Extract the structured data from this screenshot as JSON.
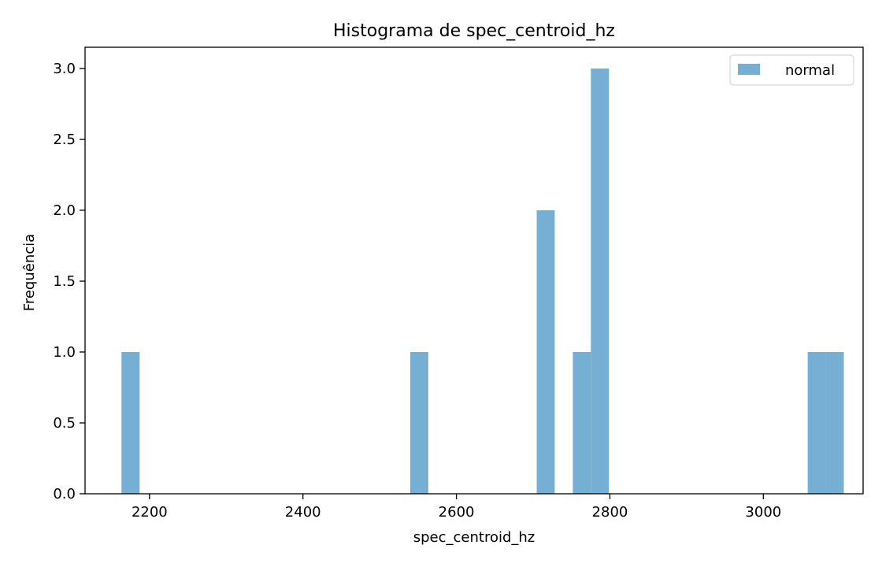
{
  "chart_data": {
    "type": "bar",
    "title": "Histograma de spec_centroid_hz",
    "xlabel": "spec_centroid_hz",
    "ylabel": "Frequência",
    "xlim": [
      2116,
      3130
    ],
    "ylim": [
      0,
      3.15
    ],
    "xticks": [
      2200,
      2400,
      2600,
      2800,
      3000
    ],
    "yticks": [
      "0.0",
      "0.5",
      "1.0",
      "1.5",
      "2.0",
      "2.5",
      "3.0"
    ],
    "bin_width": 23.55,
    "color": "#77aed3",
    "legend_position": "top-right",
    "grid": false,
    "series": [
      {
        "name": "normal",
        "bins": [
          {
            "x0": 2163.5,
            "x1": 2187.0,
            "count": 1
          },
          {
            "x0": 2539.8,
            "x1": 2563.3,
            "count": 1
          },
          {
            "x0": 2704.6,
            "x1": 2728.1,
            "count": 2
          },
          {
            "x0": 2751.7,
            "x1": 2775.2,
            "count": 1
          },
          {
            "x0": 2775.2,
            "x1": 2798.8,
            "count": 3
          },
          {
            "x0": 3057.8,
            "x1": 3081.3,
            "count": 1
          },
          {
            "x0": 3081.3,
            "x1": 3104.9,
            "count": 1
          }
        ]
      }
    ]
  }
}
